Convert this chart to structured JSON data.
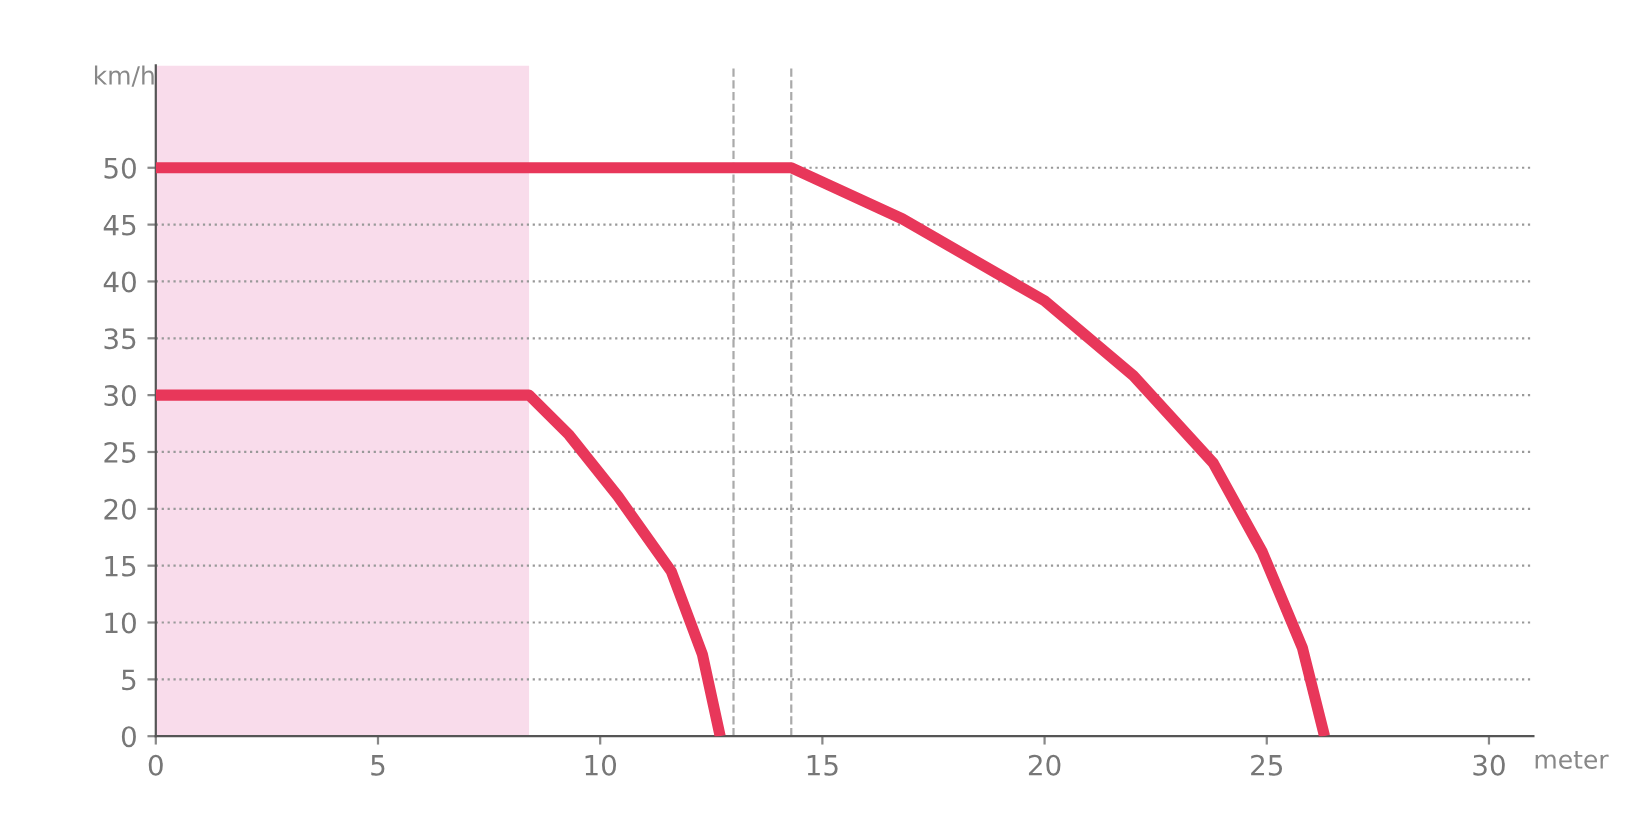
{
  "chart_data": {
    "type": "line",
    "ylabel": "km/h",
    "xlabel": "meter",
    "series": [
      {
        "color": "#e8375a",
        "x": [
          0,
          14.3,
          16.8,
          20.0,
          22.0,
          23.8,
          24.9,
          25.8,
          26.3
        ],
        "values": [
          50,
          50,
          45.5,
          38.3,
          31.7,
          24,
          16.2,
          7.8,
          0
        ]
      },
      {
        "color": "#e8375a",
        "x": [
          0,
          8.4,
          9.3,
          10.4,
          11.6,
          12.3,
          12.7
        ],
        "values": [
          30,
          30,
          26.5,
          21.1,
          14.5,
          7.2,
          0
        ]
      }
    ],
    "xlim": [
      0,
      31
    ],
    "ylim": [
      0,
      59
    ],
    "xticks": [
      0,
      5,
      10,
      15,
      20,
      25,
      30
    ],
    "yticks": [
      0,
      5,
      10,
      15,
      20,
      25,
      30,
      35,
      40,
      45,
      50
    ],
    "grid": "y",
    "line_style": "solid",
    "marker": "none",
    "bands": [
      {
        "axis": "x",
        "from": 0,
        "to": 8.4,
        "color": "#f9dceb"
      }
    ],
    "ref_lines": [
      {
        "axis": "x",
        "value": 13.0,
        "color": "#aaaaaa",
        "line_style": "dashed"
      },
      {
        "axis": "x",
        "value": 14.3,
        "color": "#aaaaaa",
        "line_style": "dashed"
      }
    ]
  }
}
